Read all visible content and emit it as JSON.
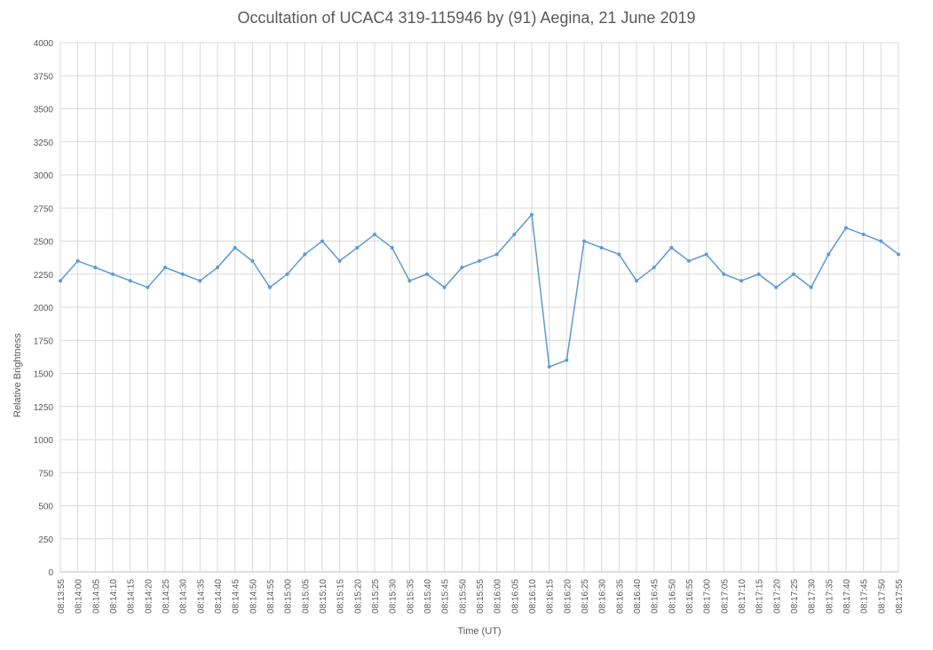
{
  "chart_data": {
    "type": "line",
    "title": "Occultation of UCAC4 319-115946 by (91) Aegina, 21 June 2019",
    "xlabel": "Time (UT)",
    "ylabel": "Relative Brightness",
    "ylim": [
      0,
      4000
    ],
    "yticks": [
      0,
      250,
      500,
      750,
      1000,
      1250,
      1500,
      1750,
      2000,
      2250,
      2500,
      2750,
      3000,
      3250,
      3500,
      3750,
      4000
    ],
    "xticks": [
      "08:13:55",
      "08:14:00",
      "08:14:05",
      "08:14:10",
      "08:14:15",
      "08:14:20",
      "08:14:25",
      "08:14:30",
      "08:14:35",
      "08:14:40",
      "08:14:45",
      "08:14:50",
      "08:14:55",
      "08:15:00",
      "08:15:05",
      "08:15:10",
      "08:15:15",
      "08:15:20",
      "08:15:25",
      "08:15:30",
      "08:15:35",
      "08:15:40",
      "08:15:45",
      "08:15:50",
      "08:15:55",
      "08:16:00",
      "08:16:05",
      "08:16:10",
      "08:16:15",
      "08:16:20",
      "08:16:25",
      "08:16:30",
      "08:16:35",
      "08:16:40",
      "08:16:45",
      "08:16:50",
      "08:16:55",
      "08:17:00",
      "08:17:05",
      "08:17:10",
      "08:17:15",
      "08:17:20",
      "08:17:25",
      "08:17:30",
      "08:17:35",
      "08:17:40",
      "08:17:45",
      "08:17:50",
      "08:17:55"
    ],
    "grid": true,
    "color": "#5B9BD5",
    "series": [
      {
        "x": [
          "08:13:55",
          "08:14:00",
          "08:14:05",
          "08:14:10",
          "08:14:15",
          "08:14:20",
          "08:14:25",
          "08:14:30",
          "08:14:35",
          "08:14:40",
          "08:14:45",
          "08:14:50",
          "08:14:55",
          "08:15:00",
          "08:15:05",
          "08:15:10",
          "08:15:15",
          "08:15:20",
          "08:15:25",
          "08:15:30",
          "08:15:35",
          "08:15:40",
          "08:15:45",
          "08:15:50",
          "08:15:55",
          "08:16:00",
          "08:16:05",
          "08:16:10",
          "08:16:15",
          "08:16:20",
          "08:16:25",
          "08:16:30",
          "08:16:35",
          "08:16:40",
          "08:16:45",
          "08:16:50",
          "08:16:55",
          "08:17:00",
          "08:17:05",
          "08:17:10",
          "08:17:15",
          "08:17:20",
          "08:17:25",
          "08:17:30",
          "08:17:35",
          "08:17:40",
          "08:17:45",
          "08:17:50",
          "08:17:55"
        ],
        "values": [
          2200,
          2350,
          2300,
          2250,
          2200,
          2150,
          2300,
          2250,
          2200,
          2300,
          2450,
          2350,
          2150,
          2250,
          2400,
          2500,
          2350,
          2450,
          2550,
          2450,
          2200,
          2250,
          2150,
          2300,
          2350,
          2400,
          2550,
          2700,
          1550,
          1600,
          2500,
          2450,
          2400,
          2200,
          2300,
          2450,
          2350,
          2400,
          2250,
          2200,
          2250,
          2150,
          2250,
          2150,
          2400,
          2600,
          2550,
          2500,
          2400
        ]
      }
    ]
  }
}
